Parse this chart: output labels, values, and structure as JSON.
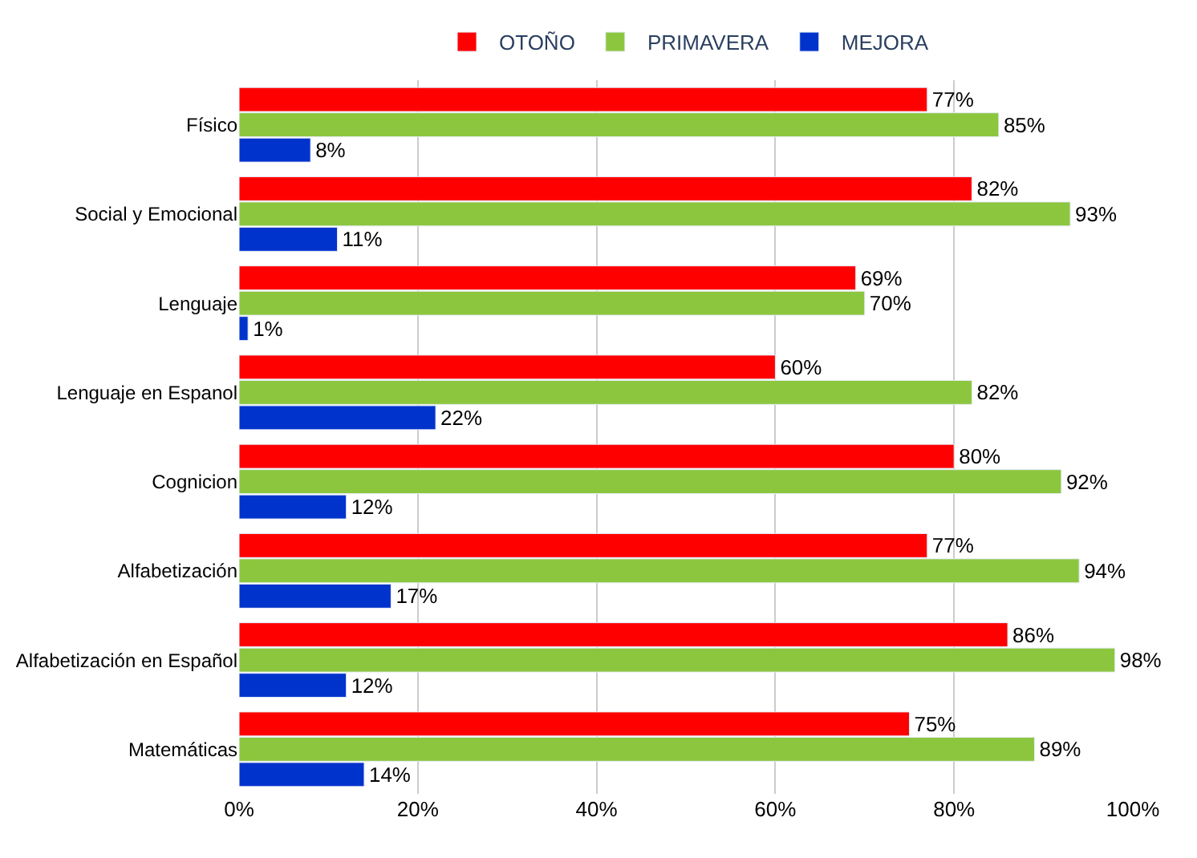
{
  "chart_data": {
    "type": "bar",
    "orientation": "horizontal",
    "categories": [
      "Físico",
      "Social y Emocional",
      "Lenguaje",
      "Lenguaje en Espanol",
      "Cognicion",
      "Alfabetización",
      "Alfabetización en Español",
      "Matemáticas"
    ],
    "series": [
      {
        "name": "OTOÑO",
        "color": "#ff0000",
        "values": [
          77,
          82,
          69,
          60,
          80,
          77,
          86,
          75
        ],
        "value_labels": [
          "77%",
          "82%",
          "69%",
          "60%",
          "80%",
          "77%",
          "86%",
          "75%"
        ]
      },
      {
        "name": "PRIMAVERA",
        "color": "#8cc63f",
        "values": [
          85,
          93,
          70,
          82,
          92,
          94,
          98,
          89
        ],
        "value_labels": [
          "85%",
          "93%",
          "70%",
          "82%",
          "92%",
          "94%",
          "98%",
          "89%"
        ]
      },
      {
        "name": "MEJORA",
        "color": "#0033cc",
        "values": [
          8,
          11,
          1,
          22,
          12,
          17,
          12,
          14
        ],
        "value_labels": [
          "8%",
          "11%",
          "1%",
          "22%",
          "12%",
          "17%",
          "12%",
          "14%"
        ]
      }
    ],
    "xlim": [
      0,
      100
    ],
    "xticks": [
      {
        "value": 0,
        "label": "0%"
      },
      {
        "value": 20,
        "label": "20%"
      },
      {
        "value": 40,
        "label": "40%"
      },
      {
        "value": 60,
        "label": "60%"
      },
      {
        "value": 80,
        "label": "80%"
      },
      {
        "value": 100,
        "label": "100%"
      }
    ],
    "grid": "x",
    "legend": "top"
  }
}
